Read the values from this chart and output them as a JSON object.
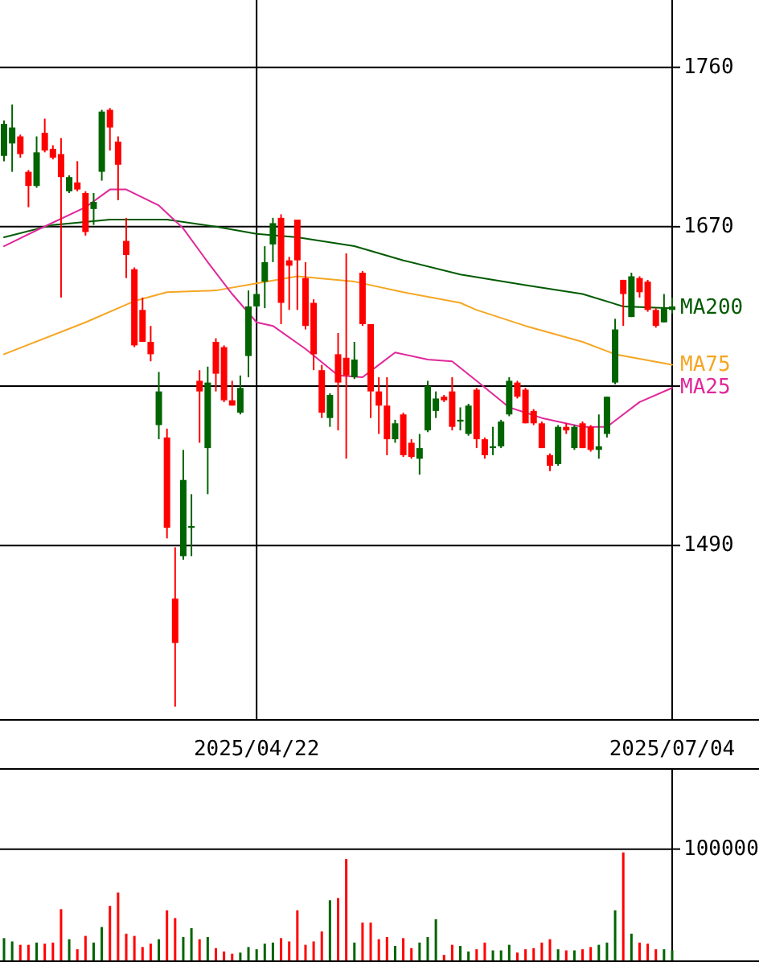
{
  "chart_data": [
    {
      "type": "candlestick",
      "categories": [
        null,
        null,
        null,
        null,
        null,
        null,
        null,
        null,
        null,
        null,
        null,
        null,
        null,
        null,
        null,
        null,
        null,
        null,
        null,
        null,
        null,
        null,
        null,
        null,
        null,
        null,
        null,
        null,
        null,
        null,
        null,
        "2025/04/22",
        null,
        null,
        null,
        null,
        null,
        null,
        null,
        null,
        null,
        null,
        null,
        null,
        null,
        null,
        null,
        null,
        null,
        null,
        null,
        null,
        null,
        null,
        null,
        null,
        null,
        null,
        null,
        null,
        null,
        null,
        null,
        null,
        null,
        null,
        null,
        null,
        null,
        null,
        null,
        null,
        null,
        null,
        null,
        null,
        null,
        null,
        null,
        null,
        null,
        null,
        "2025/07/04"
      ],
      "ohlc": [
        [
          1710,
          1730,
          1707,
          1728
        ],
        [
          1717,
          1739,
          1701,
          1726
        ],
        [
          1721,
          1722,
          1709,
          1711
        ],
        [
          1701,
          1702,
          1681,
          1693
        ],
        [
          1693,
          1721,
          1692,
          1712
        ],
        [
          1723,
          1731,
          1712,
          1713
        ],
        [
          1714,
          1716,
          1708,
          1709
        ],
        [
          1711,
          1720,
          1630,
          1698
        ],
        [
          1690,
          1699,
          1689,
          1698
        ],
        [
          1695,
          1707,
          1690,
          1691
        ],
        [
          1689,
          1690,
          1665,
          1667
        ],
        [
          1680,
          1689,
          1671,
          1684
        ],
        [
          1701,
          1736,
          1696,
          1735
        ],
        [
          1736,
          1737,
          1713,
          1726
        ],
        [
          1718,
          1721,
          1685,
          1705
        ],
        [
          1662,
          1675,
          1641,
          1654
        ],
        [
          1646,
          1647,
          1602,
          1603
        ],
        [
          1623,
          1630,
          1605,
          1605
        ],
        [
          1605,
          1614,
          1594,
          1598
        ],
        [
          1558,
          1588,
          1550,
          1577
        ],
        [
          1551,
          1556,
          1494,
          1500
        ],
        [
          1460,
          1489,
          1399,
          1435
        ],
        [
          1484,
          1544,
          1482,
          1527
        ],
        [
          1500,
          1519,
          1484,
          1501
        ],
        [
          1583,
          1589,
          1548,
          1577
        ],
        [
          1545,
          1591,
          1519,
          1582
        ],
        [
          1605,
          1607,
          1577,
          1587
        ],
        [
          1602,
          1603,
          1571,
          1572
        ],
        [
          1572,
          1583,
          1569,
          1569
        ],
        [
          1565,
          1586,
          1564,
          1579
        ],
        [
          1597,
          1634,
          1585,
          1625
        ],
        [
          1625,
          1634,
          1624,
          1632
        ],
        [
          1639,
          1659,
          1624,
          1650
        ],
        [
          1660,
          1675,
          1650,
          1672
        ],
        [
          1675,
          1677,
          1615,
          1627
        ],
        [
          1651,
          1653,
          1623,
          1648
        ],
        [
          1674,
          1674,
          1623,
          1651
        ],
        [
          1641,
          1650,
          1612,
          1614
        ],
        [
          1627,
          1629,
          1589,
          1598
        ],
        [
          1589,
          1592,
          1562,
          1565
        ],
        [
          1562,
          1576,
          1557,
          1575
        ],
        [
          1598,
          1610,
          1555,
          1582
        ],
        [
          1596,
          1655,
          1539,
          1586
        ],
        [
          1585,
          1605,
          1584,
          1595
        ],
        [
          1644,
          1645,
          1614,
          1615
        ],
        [
          1615,
          1615,
          1562,
          1577
        ],
        [
          1577,
          1585,
          1553,
          1569
        ],
        [
          1569,
          1585,
          1541,
          1550
        ],
        [
          1550,
          1561,
          1548,
          1559
        ],
        [
          1564,
          1565,
          1540,
          1541
        ],
        [
          1548,
          1550,
          1539,
          1540
        ],
        [
          1539,
          1553,
          1530,
          1545
        ],
        [
          1555,
          1583,
          1554,
          1580
        ],
        [
          1566,
          1577,
          1562,
          1573
        ],
        [
          1574,
          1575,
          1571,
          1572
        ],
        [
          1577,
          1585,
          1555,
          1557
        ],
        [
          1560,
          1568,
          1555,
          1561
        ],
        [
          1553,
          1570,
          1552,
          1569
        ],
        [
          1578,
          1579,
          1545,
          1550
        ],
        [
          1550,
          1551,
          1539,
          1541
        ],
        [
          1545,
          1557,
          1541,
          1546
        ],
        [
          1546,
          1561,
          1545,
          1560
        ],
        [
          1564,
          1585,
          1563,
          1583
        ],
        [
          1582,
          1583,
          1573,
          1574
        ],
        [
          1578,
          1579,
          1559,
          1559
        ],
        [
          1566,
          1567,
          1558,
          1559
        ],
        [
          1559,
          1560,
          1545,
          1545
        ],
        [
          1541,
          1542,
          1532,
          1535
        ],
        [
          1536,
          1558,
          1535,
          1557
        ],
        [
          1557,
          1559,
          1553,
          1555
        ],
        [
          1545,
          1558,
          1544,
          1557
        ],
        [
          1559,
          1560,
          1545,
          1545
        ],
        [
          1557,
          1558,
          1543,
          1544
        ],
        [
          1544,
          1564,
          1539,
          1546
        ],
        [
          1553,
          1574,
          1551,
          1574
        ],
        [
          1582,
          1618,
          1581,
          1612
        ],
        [
          1640,
          1640,
          1614,
          1632
        ],
        [
          1619,
          1644,
          1619,
          1642
        ],
        [
          1641,
          1642,
          1630,
          1633
        ],
        [
          1639,
          1640,
          1622,
          1623
        ],
        [
          1623,
          1624,
          1613,
          1614
        ],
        [
          1616,
          1632,
          1616,
          1624
        ],
        [
          1623,
          1630,
          1621,
          1625
        ]
      ],
      "colors": [
        "#006400",
        "#006400",
        "#ff0000",
        "#ff0000",
        "#006400",
        "#ff0000",
        "#ff0000",
        "#ff0000",
        "#006400",
        "#ff0000",
        "#ff0000",
        "#006400",
        "#006400",
        "#ff0000",
        "#ff0000",
        "#ff0000",
        "#ff0000",
        "#ff0000",
        "#ff0000",
        "#006400",
        "#ff0000",
        "#ff0000",
        "#006400",
        "#006400",
        "#ff0000",
        "#006400",
        "#ff0000",
        "#ff0000",
        "#ff0000",
        "#006400",
        "#006400",
        "#006400",
        "#006400",
        "#006400",
        "#ff0000",
        "#ff0000",
        "#ff0000",
        "#ff0000",
        "#ff0000",
        "#ff0000",
        "#006400",
        "#ff0000",
        "#ff0000",
        "#006400",
        "#ff0000",
        "#ff0000",
        "#ff0000",
        "#ff0000",
        "#006400",
        "#ff0000",
        "#ff0000",
        "#006400",
        "#006400",
        "#006400",
        "#ff0000",
        "#ff0000",
        "#006400",
        "#006400",
        "#ff0000",
        "#ff0000",
        "#006400",
        "#006400",
        "#006400",
        "#ff0000",
        "#ff0000",
        "#ff0000",
        "#ff0000",
        "#ff0000",
        "#006400",
        "#ff0000",
        "#006400",
        "#ff0000",
        "#ff0000",
        "#006400",
        "#006400",
        "#006400",
        "#ff0000",
        "#006400",
        "#ff0000",
        "#ff0000",
        "#ff0000",
        "#006400",
        "#006400"
      ],
      "series": [
        {
          "type": "line",
          "name": "MA200",
          "color": "#005a00",
          "values": [
            1664,
            null,
            null,
            null,
            null,
            null,
            1671,
            null,
            null,
            null,
            null,
            null,
            null,
            1674,
            null,
            null,
            null,
            null,
            null,
            null,
            1674,
            null,
            null,
            null,
            null,
            null,
            1670,
            null,
            null,
            null,
            null,
            1666,
            null,
            null,
            null,
            null,
            1664,
            null,
            null,
            null,
            null,
            null,
            null,
            1659,
            null,
            null,
            null,
            null,
            null,
            1651,
            null,
            null,
            null,
            null,
            null,
            null,
            1643,
            null,
            null,
            null,
            null,
            null,
            null,
            null,
            1637,
            null,
            null,
            null,
            null,
            null,
            null,
            1632,
            null,
            null,
            null,
            null,
            1625,
            null,
            null,
            null,
            null,
            null,
            1624
          ]
        },
        {
          "type": "line",
          "name": "MA75",
          "color": "#f5a623",
          "values": [
            1598,
            null,
            null,
            null,
            null,
            null,
            null,
            null,
            null,
            null,
            1616,
            null,
            null,
            null,
            null,
            null,
            1628,
            null,
            null,
            null,
            1633,
            null,
            null,
            null,
            null,
            null,
            1634,
            null,
            null,
            null,
            null,
            1638,
            null,
            null,
            null,
            null,
            1642,
            null,
            null,
            null,
            null,
            null,
            null,
            1639,
            null,
            null,
            null,
            null,
            null,
            1633,
            null,
            null,
            null,
            null,
            null,
            null,
            1627,
            null,
            1623,
            null,
            null,
            null,
            null,
            null,
            1614,
            null,
            null,
            null,
            null,
            null,
            null,
            1605,
            null,
            null,
            null,
            1598,
            null,
            null,
            null,
            null,
            null,
            null,
            1592
          ]
        },
        {
          "type": "line",
          "name": "MA25",
          "color": "#e0289a",
          "values": [
            1659,
            null,
            null,
            null,
            1668,
            null,
            null,
            null,
            null,
            null,
            1681,
            null,
            null,
            1691,
            null,
            1691,
            null,
            null,
            null,
            1682,
            null,
            null,
            1669,
            null,
            null,
            1650,
            null,
            null,
            1632,
            null,
            null,
            1616,
            null,
            1614,
            null,
            null,
            null,
            1601,
            null,
            null,
            null,
            1586,
            null,
            null,
            1585,
            null,
            1592,
            null,
            1599,
            null,
            null,
            null,
            1595,
            null,
            null,
            1594,
            null,
            null,
            1583,
            null,
            null,
            null,
            1568,
            null,
            null,
            null,
            1562,
            null,
            null,
            null,
            null,
            1557,
            null,
            null,
            1557,
            null,
            null,
            null,
            1571,
            null,
            null,
            null,
            1579
          ]
        }
      ],
      "ylim": [
        1392,
        1798
      ],
      "yticks": [
        1490,
        {
          "value": 1580,
          "label": null
        },
        1670,
        1760
      ],
      "grid": true
    },
    {
      "type": "bar",
      "categories": [
        null,
        null,
        null,
        null,
        null,
        null,
        null,
        null,
        null,
        null,
        null,
        null,
        null,
        null,
        null,
        null,
        null,
        null,
        null,
        null,
        null,
        null,
        null,
        null,
        null,
        null,
        null,
        null,
        null,
        null,
        null,
        null,
        null,
        null,
        null,
        null,
        null,
        null,
        null,
        null,
        null,
        null,
        null,
        null,
        null,
        null,
        null,
        null,
        null,
        null,
        null,
        null,
        null,
        null,
        null,
        null,
        null,
        null,
        null,
        null,
        null,
        null,
        null,
        null,
        null,
        null,
        null,
        null,
        null,
        null,
        null,
        null,
        null,
        null,
        null,
        null,
        null,
        null,
        null,
        null,
        null,
        null,
        null
      ],
      "values": [
        20000,
        17000,
        14000,
        14000,
        16000,
        15000,
        16000,
        46000,
        19000,
        10000,
        22000,
        16000,
        30000,
        49000,
        61000,
        24000,
        22000,
        12000,
        15000,
        19000,
        45000,
        38000,
        21000,
        29000,
        19000,
        21000,
        11000,
        8000,
        6000,
        7000,
        12000,
        10000,
        15000,
        16000,
        20000,
        17000,
        45000,
        14000,
        17000,
        26000,
        54000,
        56000,
        91000,
        16000,
        34000,
        34000,
        19000,
        21000,
        13000,
        20000,
        11000,
        16000,
        21000,
        37000,
        5000,
        14000,
        13000,
        8000,
        10000,
        16000,
        9000,
        9000,
        14000,
        7000,
        10000,
        11000,
        16000,
        19000,
        10000,
        9000,
        9000,
        10000,
        12000,
        14000,
        16000,
        45000,
        97000,
        24000,
        16000,
        15000,
        10000,
        10000,
        9000
      ],
      "colors": [
        "#006400",
        "#006400",
        "#ff0000",
        "#ff0000",
        "#006400",
        "#ff0000",
        "#ff0000",
        "#ff0000",
        "#006400",
        "#ff0000",
        "#ff0000",
        "#006400",
        "#006400",
        "#ff0000",
        "#ff0000",
        "#ff0000",
        "#ff0000",
        "#ff0000",
        "#ff0000",
        "#006400",
        "#ff0000",
        "#ff0000",
        "#006400",
        "#006400",
        "#ff0000",
        "#006400",
        "#ff0000",
        "#ff0000",
        "#ff0000",
        "#006400",
        "#006400",
        "#006400",
        "#006400",
        "#006400",
        "#ff0000",
        "#ff0000",
        "#ff0000",
        "#ff0000",
        "#ff0000",
        "#ff0000",
        "#006400",
        "#ff0000",
        "#ff0000",
        "#006400",
        "#ff0000",
        "#ff0000",
        "#ff0000",
        "#ff0000",
        "#006400",
        "#ff0000",
        "#ff0000",
        "#006400",
        "#006400",
        "#006400",
        "#ff0000",
        "#ff0000",
        "#006400",
        "#006400",
        "#ff0000",
        "#ff0000",
        "#006400",
        "#006400",
        "#006400",
        "#ff0000",
        "#ff0000",
        "#ff0000",
        "#ff0000",
        "#ff0000",
        "#006400",
        "#ff0000",
        "#006400",
        "#ff0000",
        "#ff0000",
        "#006400",
        "#006400",
        "#006400",
        "#ff0000",
        "#006400",
        "#ff0000",
        "#ff0000",
        "#ff0000",
        "#006400",
        "#006400"
      ],
      "ylim": [
        0,
        172000
      ],
      "yticks": [
        100000
      ],
      "grid": "y",
      "tick_labels": "y"
    }
  ]
}
